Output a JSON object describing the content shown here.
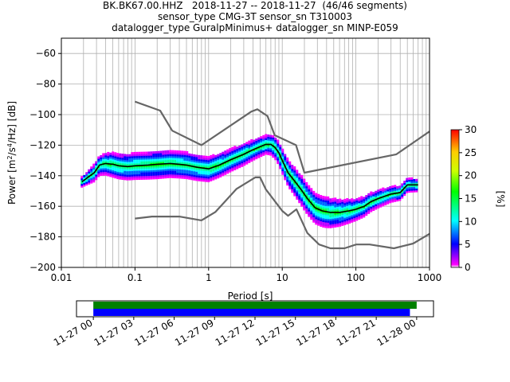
{
  "title_lines": [
    "BK.BK67.00.HHZ   2018-11-27 -- 2018-11-27  (46/46 segments)",
    "sensor_type CMG-3T sensor_sn T310003",
    "datalogger_type GuralpMinimus+ datalogger_sn MINP-E059"
  ],
  "chart_data": {
    "type": "heatmap",
    "title": "BK.BK67.00.HHZ   2018-11-27 -- 2018-11-27  (46/46 segments)",
    "xlabel": "Period [s]",
    "ylabel_parts": {
      "pre": "Power [m",
      "sup1": "2",
      "mid": "/s",
      "sup2": "4",
      "post": "/Hz] [dB]"
    },
    "xscale": "log",
    "xlim": [
      0.01,
      1000
    ],
    "ylim": [
      -200,
      -50
    ],
    "xticks": [
      {
        "value": 0.01,
        "label": "0.01"
      },
      {
        "value": 0.1,
        "label": "0.1"
      },
      {
        "value": 1,
        "label": "1"
      },
      {
        "value": 10,
        "label": "10"
      },
      {
        "value": 100,
        "label": "100"
      },
      {
        "value": 1000,
        "label": "1000"
      }
    ],
    "yticks": [
      {
        "value": -60,
        "label": "−60"
      },
      {
        "value": -80,
        "label": "−80"
      },
      {
        "value": -100,
        "label": "−100"
      },
      {
        "value": -120,
        "label": "−120"
      },
      {
        "value": -140,
        "label": "−140"
      },
      {
        "value": -160,
        "label": "−160"
      },
      {
        "value": -180,
        "label": "−180"
      },
      {
        "value": -200,
        "label": "−200"
      }
    ],
    "grid": true,
    "colorbar": {
      "label": "[%]",
      "range": [
        0,
        30
      ],
      "ticks": [
        {
          "value": 0,
          "label": "0"
        },
        {
          "value": 5,
          "label": "5"
        },
        {
          "value": 10,
          "label": "10"
        },
        {
          "value": 15,
          "label": "15"
        },
        {
          "value": 20,
          "label": "20"
        },
        {
          "value": 25,
          "label": "25"
        },
        {
          "value": 30,
          "label": "30"
        }
      ]
    },
    "noise_model_high": [
      [
        0.1,
        -91.5
      ],
      [
        0.22,
        -97.4
      ],
      [
        0.32,
        -110.5
      ],
      [
        0.8,
        -120
      ],
      [
        3.8,
        -98
      ],
      [
        4.6,
        -96.5
      ],
      [
        6.3,
        -101
      ],
      [
        7.9,
        -113.5
      ],
      [
        15.4,
        -120
      ],
      [
        20,
        -138
      ],
      [
        354.8,
        -126
      ],
      [
        1000,
        -111
      ]
    ],
    "noise_model_low": [
      [
        0.1,
        -168
      ],
      [
        0.17,
        -166.7
      ],
      [
        0.4,
        -166.7
      ],
      [
        0.8,
        -169.2
      ],
      [
        1.24,
        -163.7
      ],
      [
        2.4,
        -148.6
      ],
      [
        4.3,
        -141.1
      ],
      [
        5,
        -141.1
      ],
      [
        6,
        -149
      ],
      [
        10,
        -163
      ],
      [
        12,
        -166.2
      ],
      [
        15.6,
        -162
      ],
      [
        21.9,
        -177.5
      ],
      [
        31.6,
        -185
      ],
      [
        45,
        -187.5
      ],
      [
        70,
        -187.5
      ],
      [
        101,
        -185
      ],
      [
        154,
        -185
      ],
      [
        328,
        -187.5
      ],
      [
        600,
        -184.4
      ],
      [
        1000,
        -178
      ]
    ],
    "mode_curve": [
      [
        0.019,
        -144
      ],
      [
        0.023,
        -141
      ],
      [
        0.028,
        -138
      ],
      [
        0.033,
        -133
      ],
      [
        0.04,
        -132
      ],
      [
        0.05,
        -132.5
      ],
      [
        0.06,
        -133.5
      ],
      [
        0.08,
        -134
      ],
      [
        0.1,
        -133.5
      ],
      [
        0.15,
        -133
      ],
      [
        0.2,
        -132.5
      ],
      [
        0.3,
        -132
      ],
      [
        0.4,
        -132.5
      ],
      [
        0.5,
        -133
      ],
      [
        0.7,
        -134.5
      ],
      [
        1,
        -135.5
      ],
      [
        1.4,
        -133
      ],
      [
        2,
        -129.5
      ],
      [
        3,
        -126
      ],
      [
        4,
        -123
      ],
      [
        5,
        -121
      ],
      [
        6,
        -119.5
      ],
      [
        7,
        -119.5
      ],
      [
        8,
        -121.5
      ],
      [
        9,
        -125
      ],
      [
        10,
        -130
      ],
      [
        12,
        -138
      ],
      [
        15,
        -144
      ],
      [
        18,
        -149
      ],
      [
        22,
        -155
      ],
      [
        28,
        -161
      ],
      [
        35,
        -163
      ],
      [
        45,
        -164
      ],
      [
        60,
        -164
      ],
      [
        80,
        -163
      ],
      [
        100,
        -162
      ],
      [
        130,
        -160
      ],
      [
        160,
        -157
      ],
      [
        200,
        -155
      ],
      [
        300,
        -152
      ],
      [
        400,
        -151
      ],
      [
        500,
        -146
      ],
      [
        700,
        -146
      ]
    ],
    "distribution_spread_db": [
      [
        0.019,
        3
      ],
      [
        0.03,
        6
      ],
      [
        0.05,
        8
      ],
      [
        0.2,
        9
      ],
      [
        1,
        8
      ],
      [
        3,
        7
      ],
      [
        6,
        6
      ],
      [
        10,
        8
      ],
      [
        20,
        10
      ],
      [
        40,
        10
      ],
      [
        100,
        7
      ],
      [
        300,
        5
      ],
      [
        700,
        4
      ]
    ]
  },
  "timeline": {
    "ticks": [
      "11-27 00",
      "11-27 03",
      "11-27 06",
      "11-27 09",
      "11-27 12",
      "11-27 15",
      "11-27 18",
      "11-27 21",
      "11-28 00"
    ],
    "tick_hours": [
      0,
      3,
      6,
      9,
      12,
      15,
      18,
      21,
      24
    ],
    "range_hours": [
      -1.25,
      25.25
    ],
    "bars": [
      {
        "name": "data",
        "color": "#008000",
        "start": 0,
        "end": 24.0
      },
      {
        "name": "used",
        "color": "#0000ff",
        "start": 0,
        "end": 23.5
      }
    ]
  }
}
